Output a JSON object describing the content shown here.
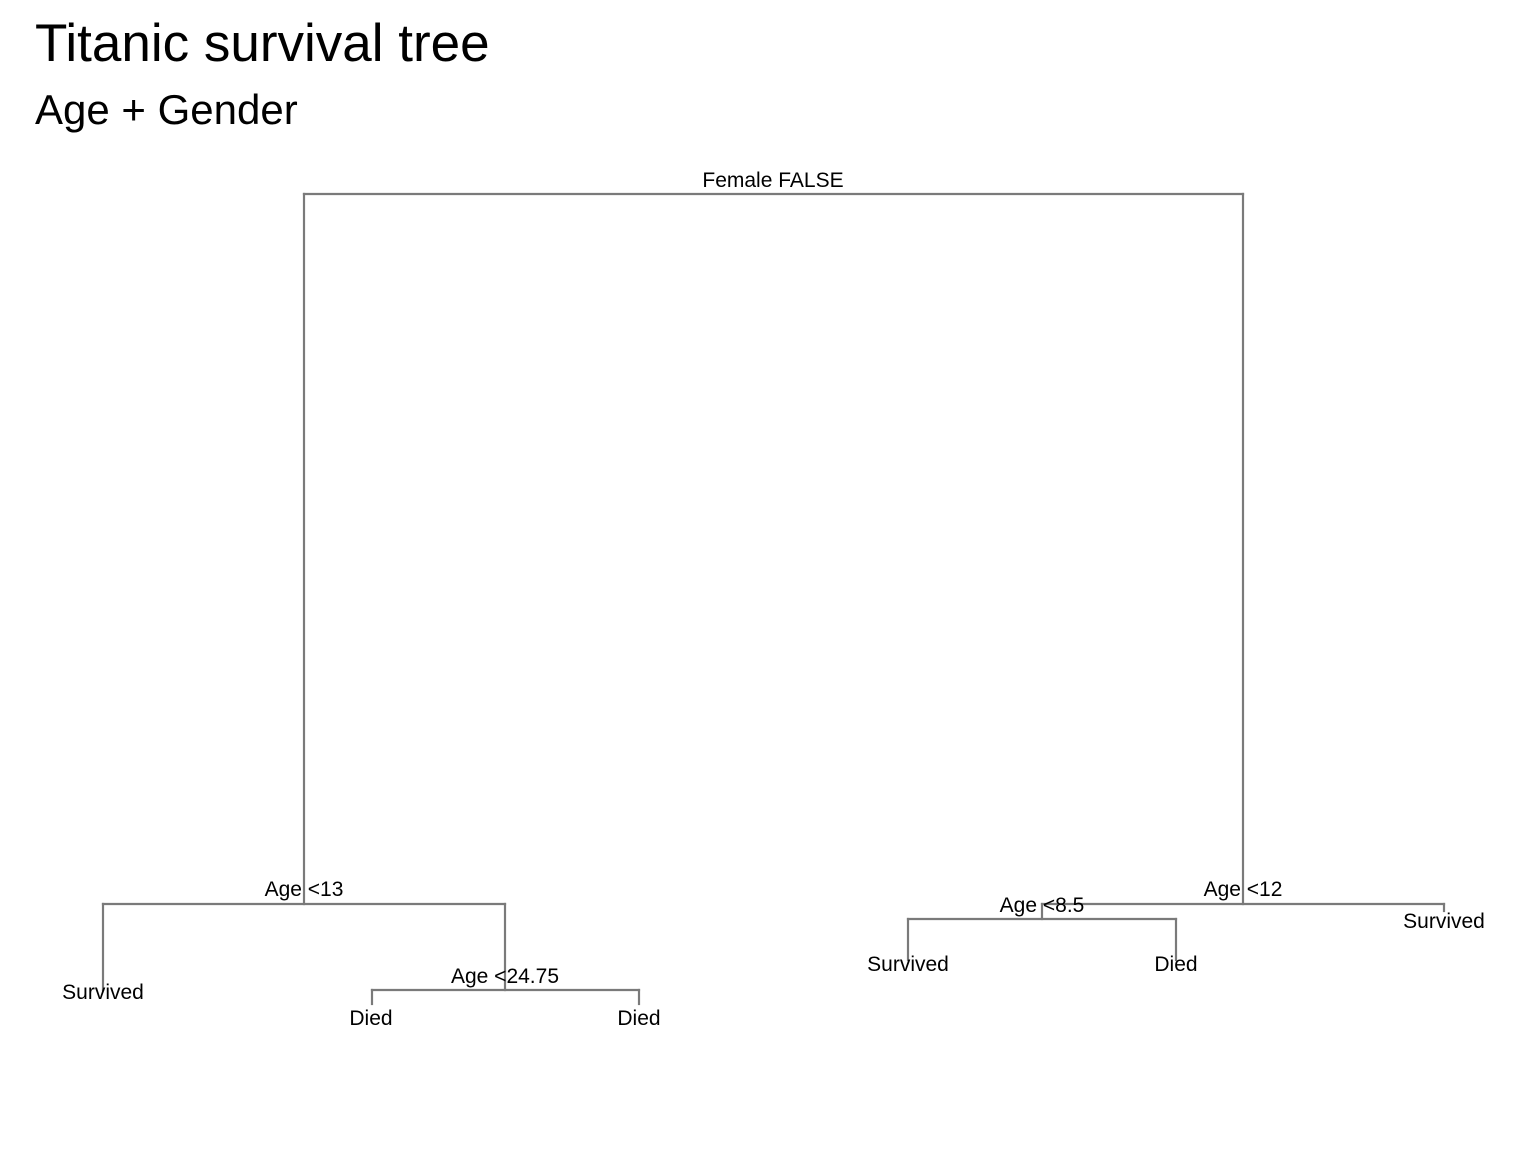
{
  "header": {
    "title": "Titanic survival tree",
    "subtitle": "Age + Gender"
  },
  "colors": {
    "branch": "#7a7a7a",
    "text": "#000000",
    "background": "#ffffff"
  },
  "tree": {
    "split_labels": {
      "root": "Female FALSE",
      "male_age": "Age <13",
      "male_young_adult": "Age <24.75",
      "female_age": "Age <12",
      "female_child": "Age <8.5"
    },
    "leaf_labels": {
      "male_child": "Survived",
      "male_older_left": "Died",
      "male_older_right": "Died",
      "female_child_young": "Survived",
      "female_child_older": "Died",
      "female_adult": "Survived"
    }
  }
}
